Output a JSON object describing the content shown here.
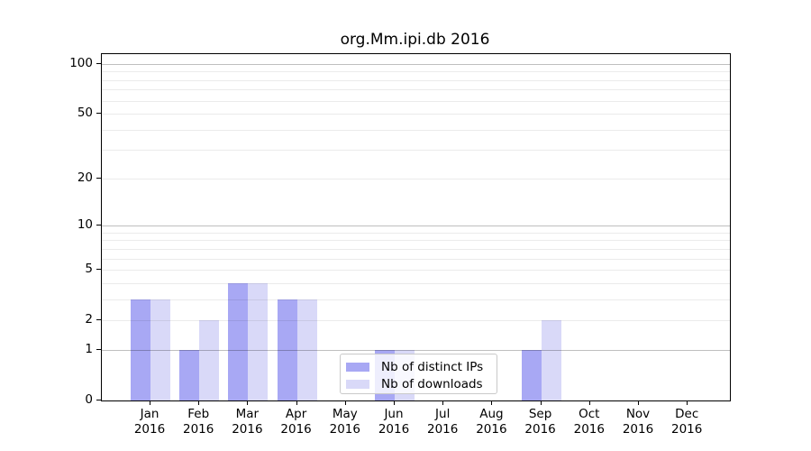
{
  "chart_data": {
    "type": "bar",
    "title": "org.Mm.ipi.db 2016",
    "categories": [
      "Jan",
      "Feb",
      "Mar",
      "Apr",
      "May",
      "Jun",
      "Jul",
      "Aug",
      "Sep",
      "Oct",
      "Nov",
      "Dec"
    ],
    "year_label": "2016",
    "series": [
      {
        "name": "Nb of distinct IPs",
        "color": "#a8a8f4",
        "values": [
          3,
          1,
          4,
          3,
          0,
          1,
          0,
          0,
          1,
          0,
          0,
          0
        ]
      },
      {
        "name": "Nb of downloads",
        "color": "#d9d9f8",
        "values": [
          3,
          2,
          4,
          3,
          0,
          1,
          0,
          0,
          2,
          0,
          0,
          0
        ]
      }
    ],
    "y_axis": {
      "scale": "log10(value+1)",
      "tick_values": [
        0,
        1,
        2,
        5,
        10,
        20,
        50,
        100
      ],
      "tick_labels": [
        "0",
        "1",
        "2",
        "5",
        "10",
        "20",
        "50",
        "100"
      ],
      "major_gridline_values": [
        1,
        10,
        100
      ],
      "minor_gridline_values": [
        2,
        3,
        4,
        5,
        6,
        7,
        8,
        9,
        20,
        30,
        40,
        50,
        60,
        70,
        80,
        90
      ],
      "ylim_top": 115
    },
    "legend": {
      "entries": [
        "Nb of distinct IPs",
        "Nb of downloads"
      ],
      "position": "lower center"
    },
    "grid": true
  },
  "colors": {
    "axis": "#000000",
    "background": "#ffffff",
    "grid_major": "#bfbfbf",
    "grid_minor": "#ebebeb",
    "legend_border": "#c9c9c9",
    "bar_distinct_ips": "#a8a8f4",
    "bar_downloads": "#d9d9f8"
  }
}
